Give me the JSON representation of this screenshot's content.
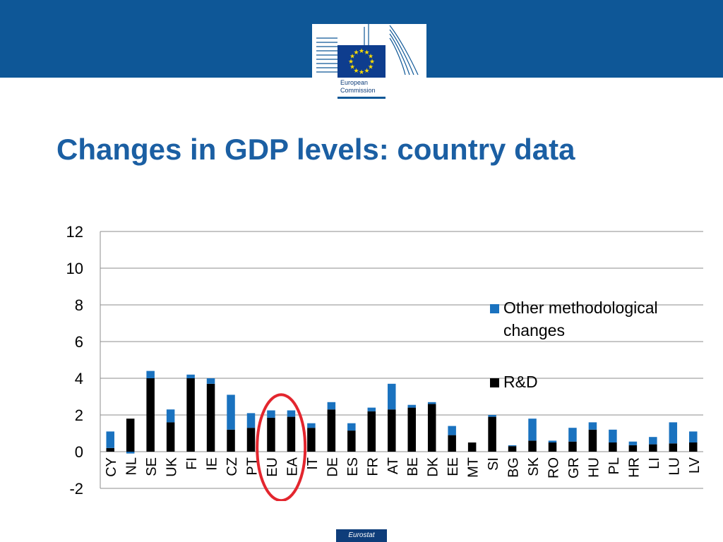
{
  "header": {
    "logo_lines": [
      "European",
      "Commission"
    ],
    "colors": {
      "band": "#0e5797",
      "flag": "#0e3d8e",
      "stars": "#ffdd00"
    }
  },
  "title": "Changes in GDP levels: country data",
  "footer": {
    "label": "Eurostat"
  },
  "highlight": {
    "categories": [
      "EU",
      "EA"
    ],
    "color": "#e3262e",
    "shape": "ellipse"
  },
  "chart_data": {
    "type": "bar",
    "stacked": true,
    "title": "",
    "xlabel": "",
    "ylabel": "",
    "ylim": [
      -2,
      12
    ],
    "yticks": [
      -2,
      0,
      2,
      4,
      6,
      8,
      10,
      12
    ],
    "grid": true,
    "legend": "right",
    "categories": [
      "CY",
      "NL",
      "SE",
      "UK",
      "FI",
      "IE",
      "CZ",
      "PT",
      "EU",
      "EA",
      "IT",
      "DE",
      "ES",
      "FR",
      "AT",
      "BE",
      "DK",
      "EE",
      "MT",
      "SI",
      "BG",
      "SK",
      "RO",
      "GR",
      "HU",
      "PL",
      "HR",
      "LI",
      "LU",
      "LV"
    ],
    "series": [
      {
        "name": "R&D",
        "color": "#000000",
        "values": [
          0.2,
          1.8,
          4.0,
          1.6,
          4.0,
          3.7,
          1.2,
          1.3,
          1.85,
          1.9,
          1.3,
          2.3,
          1.15,
          2.2,
          2.3,
          2.4,
          2.6,
          0.9,
          0.5,
          1.9,
          0.3,
          0.6,
          0.5,
          0.55,
          1.2,
          0.5,
          0.35,
          0.4,
          0.45,
          0.5
        ]
      },
      {
        "name": "Other methodological changes",
        "color": "#1a72bf",
        "values": [
          0.9,
          -0.1,
          0.4,
          0.7,
          0.2,
          0.3,
          1.9,
          0.8,
          0.4,
          0.35,
          0.25,
          0.4,
          0.4,
          0.2,
          1.4,
          0.15,
          0.1,
          0.5,
          0.0,
          0.1,
          0.05,
          1.2,
          0.1,
          0.75,
          0.4,
          0.7,
          0.2,
          0.4,
          1.15,
          0.6
        ]
      }
    ],
    "legend_lines": [
      [
        "Other methodological",
        "changes"
      ],
      [
        "R&D"
      ]
    ]
  }
}
